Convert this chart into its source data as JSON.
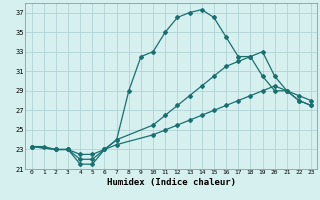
{
  "xlabel": "Humidex (Indice chaleur)",
  "bg_color": "#d6efef",
  "grid_color": "#aacece",
  "line_color": "#1a7070",
  "xlim": [
    -0.5,
    23.5
  ],
  "ylim": [
    21,
    38
  ],
  "xticks": [
    0,
    1,
    2,
    3,
    4,
    5,
    6,
    7,
    8,
    9,
    10,
    11,
    12,
    13,
    14,
    15,
    16,
    17,
    18,
    19,
    20,
    21,
    22,
    23
  ],
  "yticks": [
    21,
    23,
    25,
    27,
    29,
    31,
    33,
    35,
    37
  ],
  "line1_x": [
    0,
    1,
    2,
    3,
    4,
    5,
    6,
    7,
    8,
    9,
    10,
    11,
    12,
    13,
    14,
    15,
    16,
    17,
    18,
    19,
    20,
    21,
    22,
    23
  ],
  "line1_y": [
    23.3,
    23.3,
    23.0,
    23.0,
    21.5,
    21.5,
    23.0,
    24.0,
    29.0,
    32.5,
    33.0,
    35.0,
    36.5,
    37.0,
    37.3,
    36.5,
    34.5,
    32.5,
    32.5,
    30.5,
    29.0,
    29.0,
    28.0,
    27.5
  ],
  "line2_x": [
    0,
    2,
    3,
    4,
    5,
    6,
    7,
    10,
    11,
    12,
    13,
    14,
    15,
    16,
    17,
    18,
    19,
    20,
    21,
    22,
    23
  ],
  "line2_y": [
    23.3,
    23.0,
    23.0,
    22.5,
    22.5,
    23.0,
    24.0,
    25.5,
    26.5,
    27.5,
    28.5,
    29.5,
    30.5,
    31.5,
    32.0,
    32.5,
    33.0,
    30.5,
    29.0,
    28.5,
    28.0
  ],
  "line3_x": [
    0,
    2,
    3,
    4,
    5,
    6,
    7,
    10,
    11,
    12,
    13,
    14,
    15,
    16,
    17,
    18,
    19,
    20,
    21,
    22,
    23
  ],
  "line3_y": [
    23.3,
    23.0,
    23.0,
    22.0,
    22.0,
    23.0,
    23.5,
    24.5,
    25.0,
    25.5,
    26.0,
    26.5,
    27.0,
    27.5,
    28.0,
    28.5,
    29.0,
    29.5,
    29.0,
    28.0,
    27.5
  ]
}
